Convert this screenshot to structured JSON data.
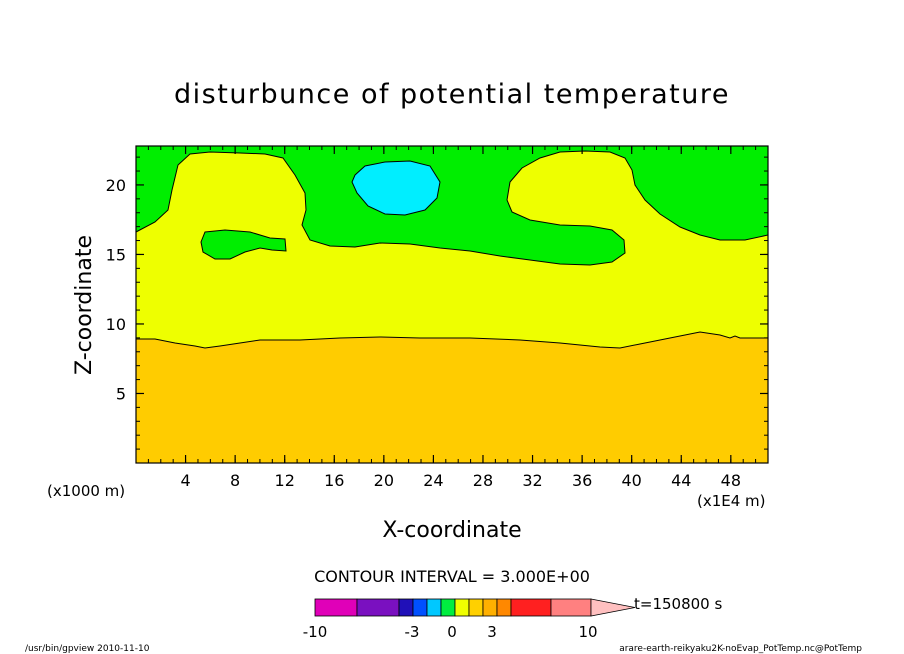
{
  "chart_data": {
    "type": "heatmap",
    "title": "disturbunce of potential temperature",
    "xlabel": "X-coordinate",
    "ylabel": "Z-coordinate",
    "x_unit_label": "(x1000 m)",
    "x_scale_label": "(x1E4 m)",
    "xlim": [
      0,
      51
    ],
    "ylim": [
      0,
      22.8
    ],
    "xticks": [
      4,
      8,
      12,
      16,
      20,
      24,
      28,
      32,
      36,
      40,
      44,
      48
    ],
    "yticks": [
      5,
      10,
      15,
      20
    ],
    "contour_interval_label": "CONTOUR INTERVAL = 3.000E+00",
    "time_label": "t=150800 s",
    "colorbar": {
      "ticks": [
        "-10",
        "-3",
        "0",
        "3",
        "10"
      ],
      "colors": [
        "#e000b8",
        "#7a10c0",
        "#2010b8",
        "#0050ff",
        "#00c8ff",
        "#00ee40",
        "#f0ff00",
        "#ffd000",
        "#ffb000",
        "#ff8800",
        "#ff2020",
        "#ff8080",
        "#ffc0c0"
      ]
    },
    "regions": [
      {
        "name": "-3 to 0",
        "color": "#00eeff",
        "note": "cold bubble near x≈21, z≈19.5"
      },
      {
        "name": "0 to 3",
        "color": "#00ee00",
        "note": "upper layer z>15"
      },
      {
        "name": "3 to 6",
        "color": "#eeff00",
        "note": "middle layer z≈9–15 with plume intrusions"
      },
      {
        "name": "6 to 9",
        "color": "#ffcc00",
        "note": "lower layer z<9"
      }
    ]
  },
  "footer": {
    "left": "/usr/bin/gpview   2010-11-10",
    "right": "arare-earth-reikyaku2K-noEvap_PotTemp.nc@PotTemp"
  }
}
